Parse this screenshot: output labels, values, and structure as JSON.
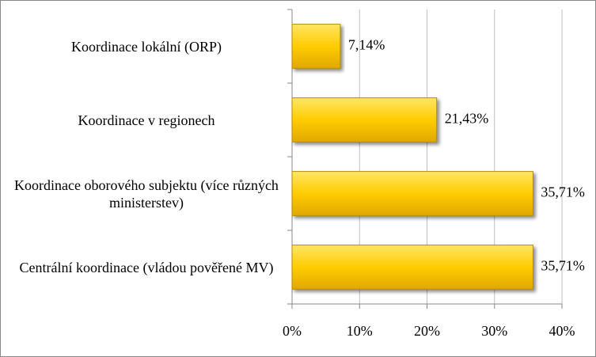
{
  "chart_data": {
    "type": "bar",
    "orientation": "horizontal",
    "categories": [
      "Koordinace lokální (ORP)",
      "Koordinace v regionech",
      "Koordinace oborového subjektu (více různých ministerstev)",
      "Centrální koordinace (vládou pověřené MV)"
    ],
    "values": [
      7.14,
      21.43,
      35.71,
      35.71
    ],
    "value_labels": [
      "7,14%",
      "21,43%",
      "35,71%",
      "35,71%"
    ],
    "color": "#ffcc00",
    "xlim": [
      0,
      40
    ],
    "xticks": [
      {
        "value": 0,
        "label": "0%"
      },
      {
        "value": 10,
        "label": "10%"
      },
      {
        "value": 20,
        "label": "20%"
      },
      {
        "value": 30,
        "label": "30%"
      },
      {
        "value": 40,
        "label": "40%"
      }
    ],
    "grid": true
  }
}
